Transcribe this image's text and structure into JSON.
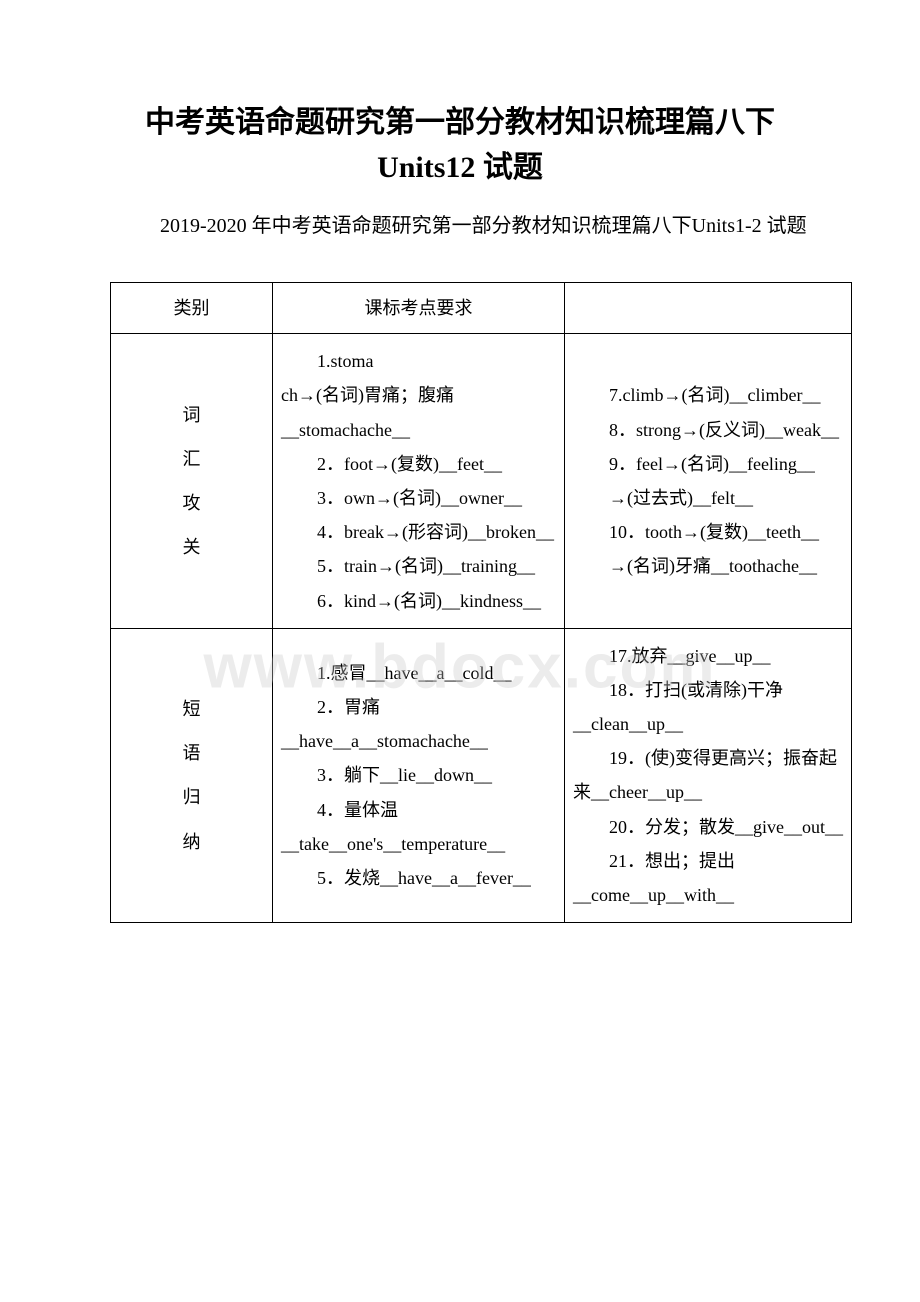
{
  "title": "中考英语命题研究第一部分教材知识梳理篇八下 Units12 试题",
  "subtitle": "2019-2020 年中考英语命题研究第一部分教材知识梳理篇八下Units1-2 试题",
  "watermark": "www.bdocx.com",
  "header": {
    "col1": "类别",
    "col2": "课标考点要求",
    "col3": ""
  },
  "row1": {
    "label_chars": [
      "词",
      "汇",
      "攻",
      "关"
    ],
    "mid_lines": [
      {
        "t": "p",
        "text": "1.stoma"
      },
      {
        "t": "sub",
        "text": "ch→(名词)胃痛；腹痛__stomachache__"
      },
      {
        "t": "p",
        "text": "2．foot→(复数)__feet__"
      },
      {
        "t": "p",
        "text": "3．own→(名词)__owner__"
      },
      {
        "t": "p",
        "text": "4．break→(形容词)__broken__"
      },
      {
        "t": "p",
        "text": "5．train→(名词)__training__"
      },
      {
        "t": "p",
        "text": "6．kind→(名词)__kindness__"
      }
    ],
    "right_lines": [
      {
        "t": "p",
        "text": "7.climb→(名词)__climber__"
      },
      {
        "t": "p",
        "text": "8．strong→(反义词)__weak__"
      },
      {
        "t": "p",
        "text": "9．feel→(名词)__feeling__"
      },
      {
        "t": "p",
        "text": "→(过去式)__felt__"
      },
      {
        "t": "p",
        "text": "10．tooth→(复数)__teeth__"
      },
      {
        "t": "p",
        "text": "→(名词)牙痛__toothache__"
      }
    ]
  },
  "row2": {
    "label_chars": [
      "短",
      "语",
      "归",
      "纳"
    ],
    "mid_lines": [
      {
        "t": "p",
        "text": "1.感冒__have__a__cold__"
      },
      {
        "t": "p",
        "text": "2．胃痛__have__a__stomachache__"
      },
      {
        "t": "p",
        "text": "3．躺下__lie__down__"
      },
      {
        "t": "p",
        "text": "4．量体温__take__one's__temperature__"
      },
      {
        "t": "p",
        "text": "5．发烧__have__a__fever__"
      }
    ],
    "right_lines": [
      {
        "t": "p",
        "text": "17.放弃__give__up__"
      },
      {
        "t": "p",
        "text": "18．打扫(或清除)干净__clean__up__"
      },
      {
        "t": "p",
        "text": "19．(使)变得更高兴；振奋起来__cheer__up__"
      },
      {
        "t": "p",
        "text": "20．分发；散发__give__out__"
      },
      {
        "t": "p",
        "text": "21．想出；提出__come__up__with__"
      }
    ]
  }
}
